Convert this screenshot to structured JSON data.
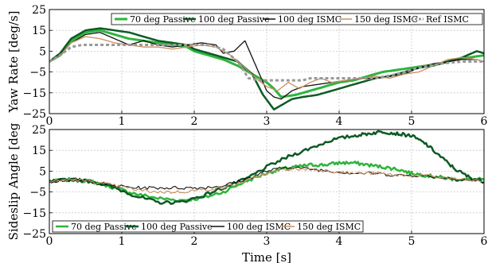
{
  "chart_data": [
    {
      "type": "line",
      "ylabel": "Yaw Rate [deg/s]",
      "xlabel": "",
      "xlim": [
        0,
        6
      ],
      "ylim": [
        -25,
        25
      ],
      "xticks": [
        "0",
        "1",
        "2",
        "3",
        "4",
        "5",
        "6"
      ],
      "yticks": [
        "25",
        "15",
        "5",
        "−5",
        "−15",
        "−25"
      ],
      "ytick_values": [
        25,
        15,
        5,
        -5,
        -15,
        -25
      ],
      "grid": true,
      "legend_position": "top",
      "series": [
        {
          "name": "70 deg Passive",
          "color": "#2db43c",
          "width": 3,
          "dash": "",
          "x": [
            0,
            0.15,
            0.3,
            0.5,
            0.7,
            0.9,
            1.1,
            1.3,
            1.5,
            1.7,
            1.9,
            2.0,
            2.2,
            2.4,
            2.6,
            2.8,
            3.0,
            3.1,
            3.2,
            3.4,
            3.6,
            3.8,
            4.0,
            4.2,
            4.4,
            4.6,
            4.8,
            5.0,
            5.2,
            5.4,
            5.6,
            5.8,
            6.0
          ],
          "y": [
            0,
            3,
            10,
            14,
            15,
            13,
            11,
            10,
            9,
            8,
            7,
            5,
            3,
            1,
            -2,
            -6,
            -10,
            -13,
            -17,
            -16,
            -14,
            -12,
            -10,
            -9,
            -7,
            -5,
            -4,
            -3,
            -2,
            -1,
            1,
            2,
            3
          ]
        },
        {
          "name": "100 deg Passive",
          "color": "#0c5a25",
          "width": 2.5,
          "dash": "",
          "x": [
            0,
            0.15,
            0.3,
            0.5,
            0.7,
            0.9,
            1.1,
            1.3,
            1.5,
            1.7,
            1.9,
            2.0,
            2.2,
            2.4,
            2.6,
            2.8,
            2.95,
            3.1,
            3.2,
            3.35,
            3.5,
            3.7,
            3.9,
            4.1,
            4.3,
            4.5,
            4.7,
            4.9,
            5.1,
            5.3,
            5.5,
            5.7,
            5.9,
            6.0
          ],
          "y": [
            0,
            4,
            11,
            15,
            16,
            15,
            14,
            12,
            10,
            9,
            8,
            6,
            4,
            2,
            0,
            -6,
            -16,
            -23,
            -21,
            -18,
            -17,
            -16,
            -14,
            -12,
            -10,
            -8,
            -7,
            -5,
            -3,
            -2,
            0,
            2,
            5,
            4
          ]
        },
        {
          "name": "100 deg ISMC",
          "color": "#111111",
          "width": 1.3,
          "dash": "",
          "x": [
            0,
            0.15,
            0.3,
            0.5,
            0.7,
            0.9,
            1.1,
            1.3,
            1.5,
            1.7,
            1.9,
            2.1,
            2.3,
            2.4,
            2.55,
            2.7,
            2.85,
            3.0,
            3.1,
            3.2,
            3.35,
            3.5,
            3.7,
            3.9,
            4.1,
            4.3,
            4.5,
            4.7,
            4.9,
            5.1,
            5.3,
            5.5,
            5.7,
            5.9,
            6.0
          ],
          "y": [
            0,
            3,
            9,
            13,
            14,
            11,
            8,
            10,
            8,
            7,
            8,
            9,
            8,
            4,
            5,
            10,
            -2,
            -14,
            -17,
            -18,
            -14,
            -12,
            -11,
            -10,
            -9,
            -8,
            -8,
            -7,
            -6,
            -3,
            -1,
            0,
            1,
            1,
            0
          ]
        },
        {
          "name": "150 deg ISMC",
          "color": "#c99060",
          "width": 1.3,
          "dash": "",
          "x": [
            0,
            0.15,
            0.3,
            0.5,
            0.7,
            0.9,
            1.1,
            1.3,
            1.5,
            1.7,
            1.9,
            2.1,
            2.3,
            2.5,
            2.7,
            2.85,
            3.0,
            3.15,
            3.3,
            3.45,
            3.6,
            3.75,
            3.9,
            4.1,
            4.3,
            4.5,
            4.7,
            4.9,
            5.1,
            5.3,
            5.5,
            5.7,
            5.9,
            6.0
          ],
          "y": [
            0,
            3,
            9,
            12,
            11,
            9,
            8,
            7,
            7,
            6,
            7,
            8,
            7,
            3,
            -3,
            -8,
            -12,
            -14,
            -10,
            -13,
            -10,
            -8,
            -10,
            -9,
            -8,
            -7,
            -8,
            -6,
            -5,
            -2,
            1,
            2,
            1,
            0
          ]
        },
        {
          "name": "Ref ISMC",
          "color": "#999999",
          "width": 3,
          "dash": "4,3",
          "x": [
            0,
            0.15,
            0.3,
            0.45,
            0.6,
            1.7,
            2.0,
            2.2,
            2.4,
            2.6,
            2.75,
            2.9,
            3.0,
            3.2,
            3.5,
            3.6,
            3.8,
            4.2,
            4.5,
            4.8,
            5.1,
            5.4,
            5.7,
            6.0
          ],
          "y": [
            0,
            3,
            7,
            8,
            8,
            8,
            8,
            8,
            6,
            0,
            -8,
            -9,
            -9,
            -9,
            -9,
            -8,
            -8,
            -8,
            -8,
            -6,
            -3,
            -1,
            0,
            0
          ]
        }
      ]
    },
    {
      "type": "line",
      "ylabel": "Sideslip Angle [deg",
      "xlabel": "Time [s]",
      "xlim": [
        0,
        6
      ],
      "ylim": [
        -25,
        25
      ],
      "xticks": [
        "0",
        "1",
        "2",
        "3",
        "4",
        "5",
        "6"
      ],
      "yticks": [
        "25",
        "15",
        "5",
        "−5",
        "−15",
        "−25"
      ],
      "ytick_values": [
        25,
        15,
        5,
        -5,
        -15,
        -25
      ],
      "grid": true,
      "legend_position": "bottom",
      "series": [
        {
          "name": "70 deg Passive",
          "color": "#2db43c",
          "width": 2.5,
          "dash": "",
          "x": [
            0,
            0.3,
            0.6,
            0.9,
            1.2,
            1.5,
            1.8,
            2.1,
            2.4,
            2.7,
            3.0,
            3.2,
            3.4,
            3.6,
            3.8,
            4.0,
            4.2,
            4.4,
            4.6,
            4.8,
            5.0,
            5.2,
            5.4,
            5.6,
            5.8,
            6.0
          ],
          "y": [
            0,
            1,
            0,
            -3,
            -6,
            -8,
            -9,
            -8,
            -5,
            0,
            4,
            6,
            7,
            8,
            8,
            9,
            9,
            8,
            7,
            6,
            4,
            3,
            2,
            1,
            1,
            1
          ]
        },
        {
          "name": "100 deg Passive",
          "color": "#0c5a25",
          "width": 2.5,
          "dash": "",
          "x": [
            0,
            0.3,
            0.6,
            0.9,
            1.2,
            1.5,
            1.8,
            2.1,
            2.4,
            2.7,
            3.0,
            3.3,
            3.6,
            3.9,
            4.2,
            4.4,
            4.6,
            4.8,
            5.0,
            5.2,
            5.4,
            5.6,
            5.8,
            6.0
          ],
          "y": [
            0,
            1,
            0,
            -3,
            -7,
            -10,
            -10,
            -7,
            -3,
            1,
            7,
            12,
            16,
            20,
            22,
            23,
            24,
            23,
            22,
            18,
            12,
            6,
            2,
            0
          ]
        },
        {
          "name": "100 deg ISMC",
          "color": "#111111",
          "width": 1.1,
          "dash": "",
          "x": [
            0,
            0.3,
            0.6,
            0.9,
            1.2,
            1.5,
            1.8,
            2.1,
            2.4,
            2.7,
            3.0,
            3.3,
            3.6,
            3.9,
            4.2,
            4.5,
            4.8,
            5.1,
            5.4,
            5.7,
            6.0
          ],
          "y": [
            0,
            1,
            0,
            -2,
            -3,
            -3,
            -3,
            -3,
            -2,
            1,
            5,
            7,
            6,
            5,
            4,
            4,
            3,
            3,
            2,
            1,
            0
          ]
        },
        {
          "name": "150 deg ISMC",
          "color": "#c99060",
          "width": 1.1,
          "dash": "",
          "x": [
            0,
            0.3,
            0.6,
            0.9,
            1.2,
            1.5,
            1.8,
            2.1,
            2.4,
            2.7,
            3.0,
            3.3,
            3.6,
            3.9,
            4.2,
            4.5,
            4.8,
            5.1,
            5.4,
            5.7,
            6.0
          ],
          "y": [
            0,
            1,
            0,
            -2,
            -4,
            -5,
            -5,
            -4,
            -3,
            0,
            4,
            6,
            6,
            5,
            4,
            4,
            3,
            3,
            2,
            1,
            0
          ]
        }
      ]
    }
  ]
}
